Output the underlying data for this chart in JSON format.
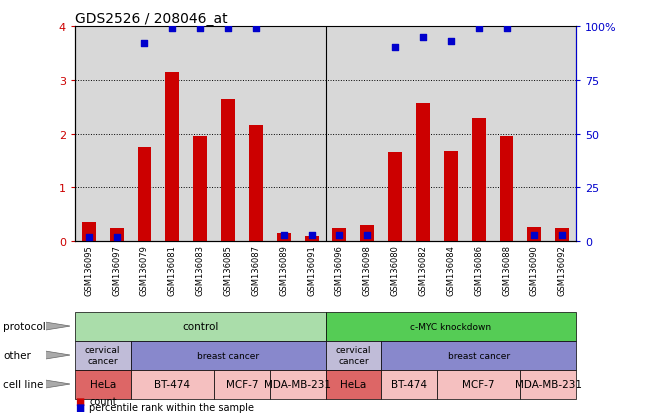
{
  "title": "GDS2526 / 208046_at",
  "samples": [
    "GSM136095",
    "GSM136097",
    "GSM136079",
    "GSM136081",
    "GSM136083",
    "GSM136085",
    "GSM136087",
    "GSM136089",
    "GSM136091",
    "GSM136096",
    "GSM136098",
    "GSM136080",
    "GSM136082",
    "GSM136084",
    "GSM136086",
    "GSM136088",
    "GSM136090",
    "GSM136092"
  ],
  "counts": [
    0.35,
    0.25,
    1.75,
    3.15,
    1.95,
    2.65,
    2.15,
    0.15,
    0.1,
    0.25,
    0.3,
    1.65,
    2.57,
    1.67,
    2.28,
    1.95,
    0.27,
    0.25
  ],
  "percentile_ranks": [
    2,
    2,
    92,
    99,
    99,
    99,
    99,
    3,
    3,
    3,
    3,
    90,
    95,
    93,
    99,
    99,
    3,
    3
  ],
  "bar_color": "#cc0000",
  "dot_color": "#0000cc",
  "ylim_left": [
    0,
    4
  ],
  "ylim_right": [
    0,
    100
  ],
  "yticks_left": [
    0,
    1,
    2,
    3,
    4
  ],
  "yticks_right": [
    0,
    25,
    50,
    75,
    100
  ],
  "ytick_labels_right": [
    "0",
    "25",
    "50",
    "75",
    "100%"
  ],
  "protocol_data": [
    {
      "label": "control",
      "start": 0,
      "end": 9,
      "color": "#aaddaa"
    },
    {
      "label": "c-MYC knockdown",
      "start": 9,
      "end": 18,
      "color": "#55cc55"
    }
  ],
  "other_data": [
    {
      "label": "cervical\ncancer",
      "start": 0,
      "end": 2,
      "color": "#c0bcd8"
    },
    {
      "label": "breast cancer",
      "start": 2,
      "end": 9,
      "color": "#8888cc"
    },
    {
      "label": "cervical\ncancer",
      "start": 9,
      "end": 11,
      "color": "#c0bcd8"
    },
    {
      "label": "breast cancer",
      "start": 11,
      "end": 18,
      "color": "#8888cc"
    }
  ],
  "cell_data": [
    {
      "label": "HeLa",
      "start": 0,
      "end": 2,
      "color": "#dd6666"
    },
    {
      "label": "BT-474",
      "start": 2,
      "end": 5,
      "color": "#f5c0c0"
    },
    {
      "label": "MCF-7",
      "start": 5,
      "end": 7,
      "color": "#f5c0c0"
    },
    {
      "label": "MDA-MB-231",
      "start": 7,
      "end": 9,
      "color": "#f5c0c0"
    },
    {
      "label": "HeLa",
      "start": 9,
      "end": 11,
      "color": "#dd6666"
    },
    {
      "label": "BT-474",
      "start": 11,
      "end": 13,
      "color": "#f5c0c0"
    },
    {
      "label": "MCF-7",
      "start": 13,
      "end": 16,
      "color": "#f5c0c0"
    },
    {
      "label": "MDA-MB-231",
      "start": 16,
      "end": 18,
      "color": "#f5c0c0"
    }
  ],
  "row_labels": [
    "protocol",
    "other",
    "cell line"
  ],
  "legend_count_label": "count",
  "legend_pct_label": "percentile rank within the sample",
  "bg_color": "#ffffff",
  "axis_bg": "#d8d8d8"
}
